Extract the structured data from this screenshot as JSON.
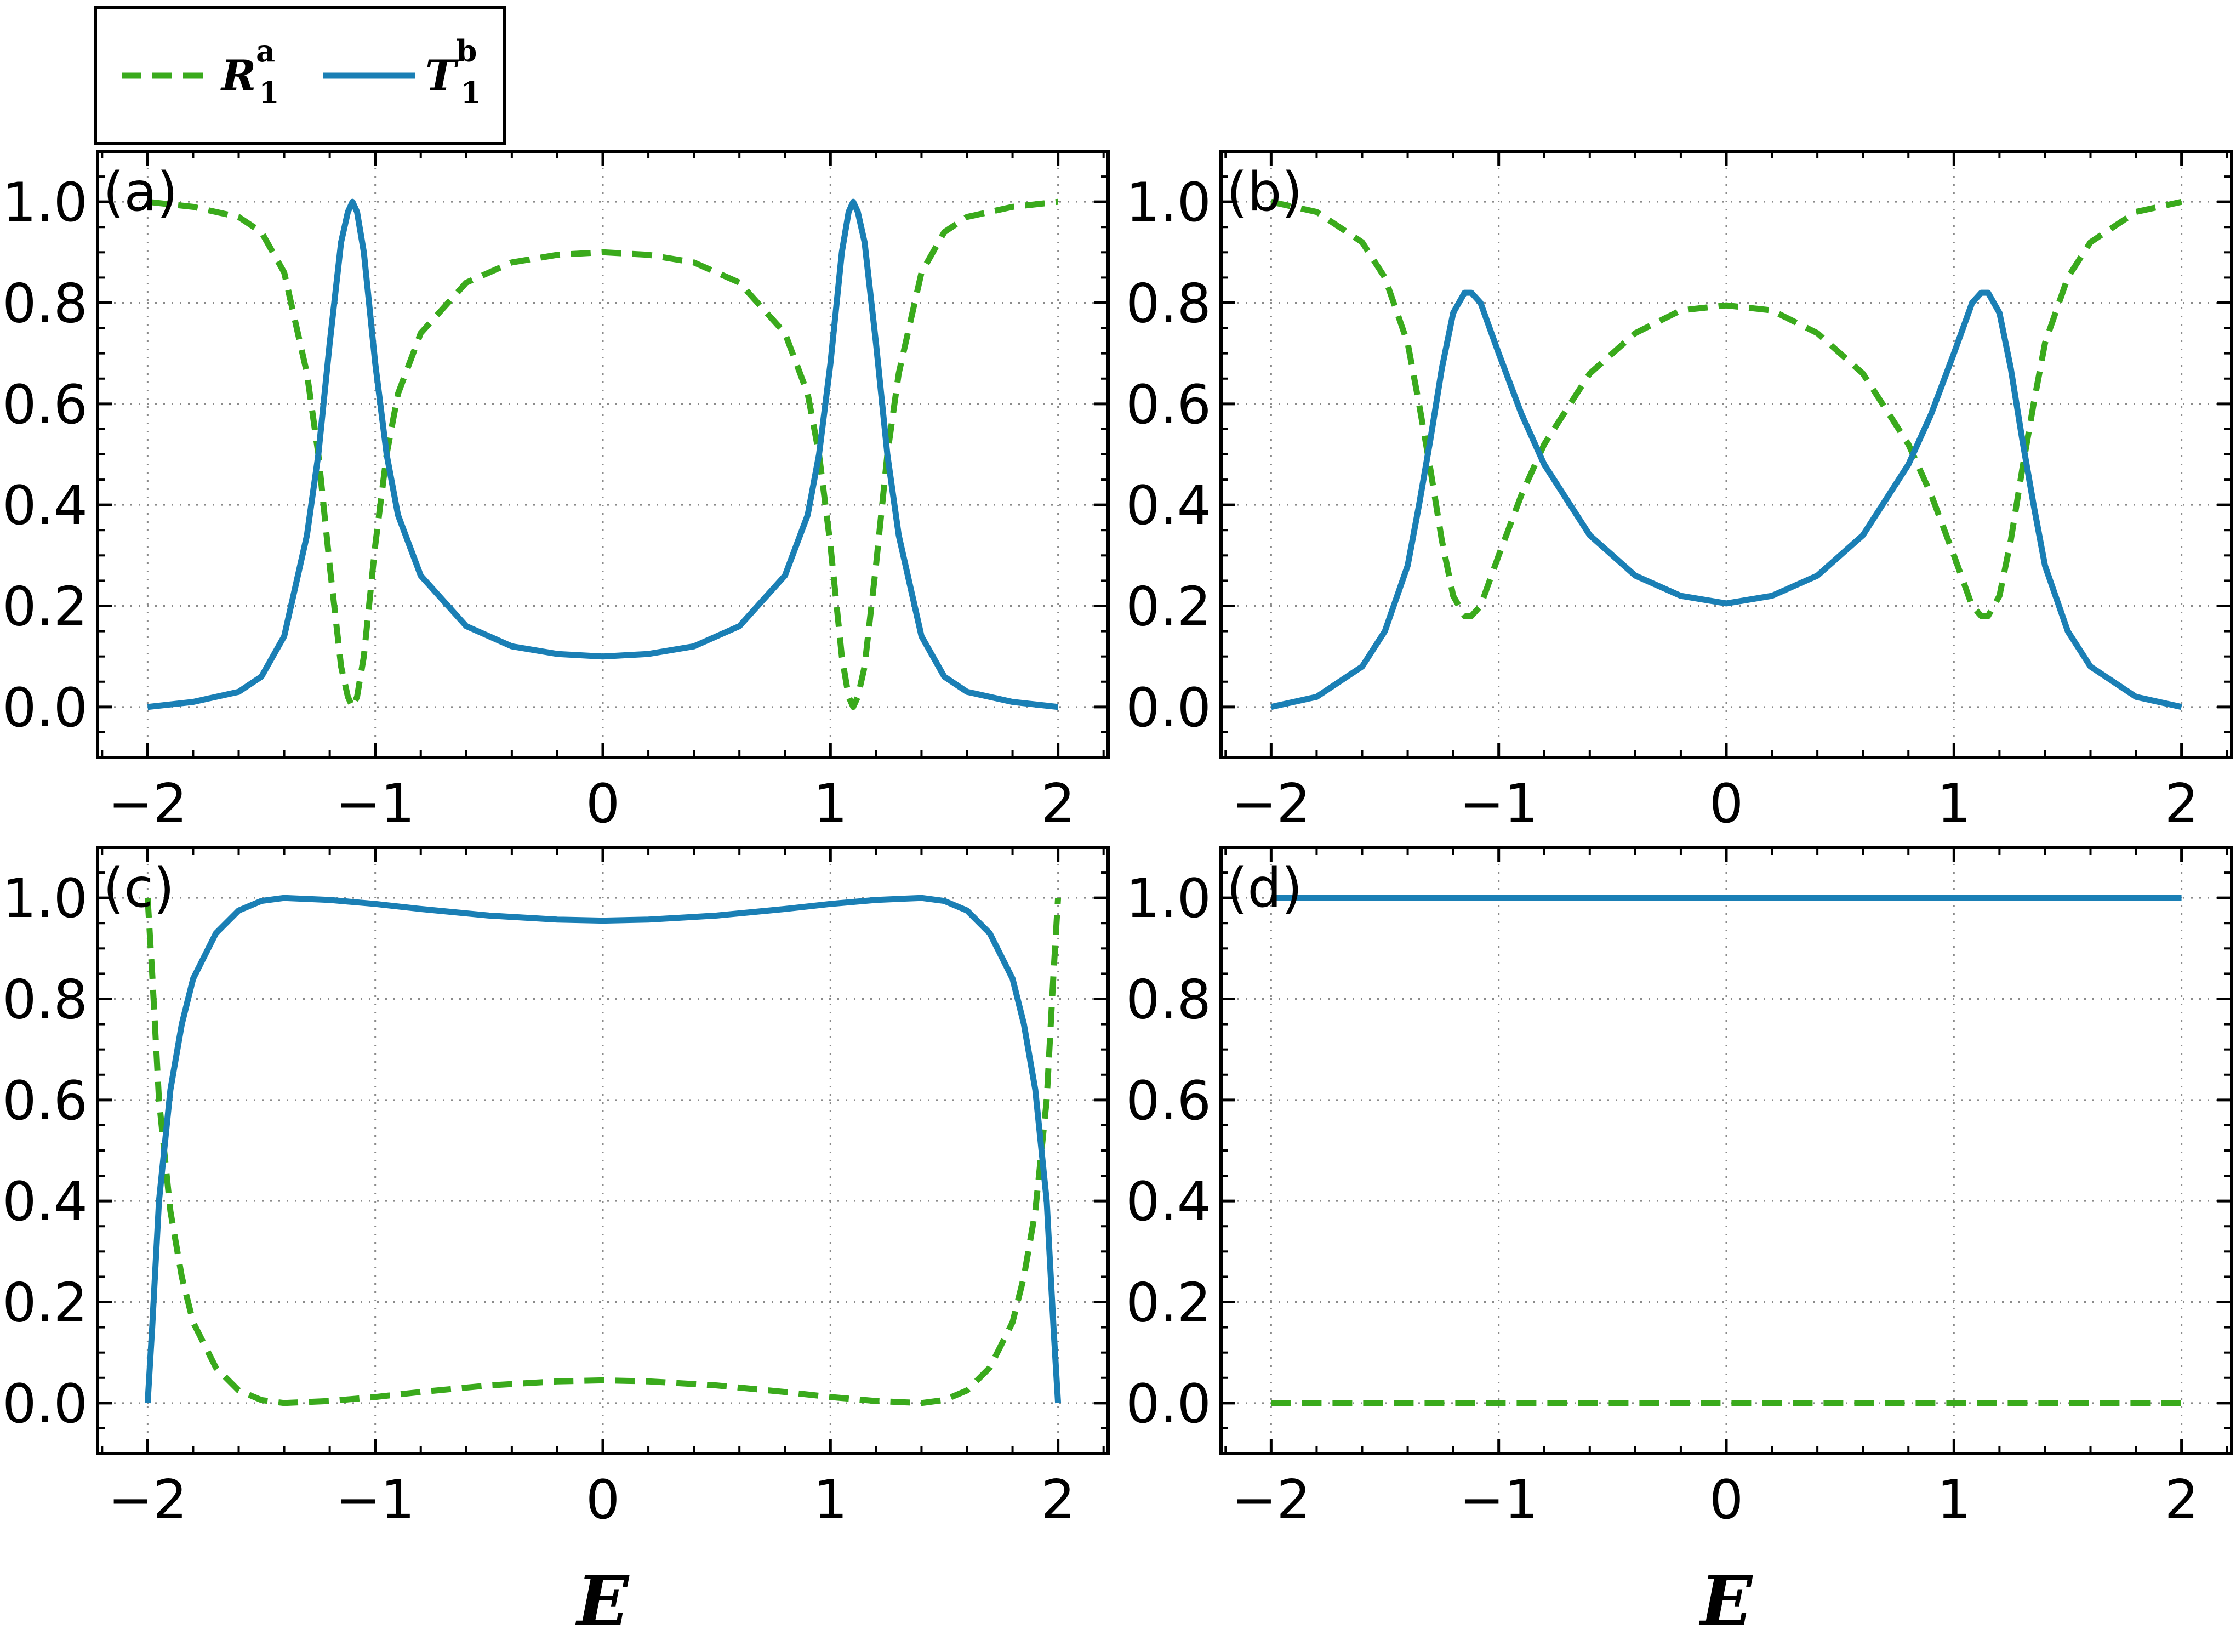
{
  "legend": {
    "entries": [
      {
        "symbol": "R",
        "sub": "1",
        "sup": "a",
        "color": "#3aaa1c",
        "dash": "dashed"
      },
      {
        "symbol": "T",
        "sub": "1",
        "sup": "b",
        "color": "#1a7fb5",
        "dash": "solid"
      }
    ]
  },
  "axes": {
    "xlabel": "E",
    "xlim": [
      -2.22,
      2.22
    ],
    "ylim": [
      -0.1,
      1.1
    ],
    "xticks": [
      -2,
      -1,
      0,
      1,
      2
    ],
    "xtick_labels": [
      "−2",
      "−1",
      "0",
      "1",
      "2"
    ],
    "yticks": [
      0.0,
      0.2,
      0.4,
      0.6,
      0.8,
      1.0
    ],
    "ytick_labels": [
      "0.0",
      "0.2",
      "0.4",
      "0.6",
      "0.8",
      "1.0"
    ],
    "grid": true
  },
  "chart_data": [
    {
      "type": "line",
      "panel": "(a)",
      "xlabel": "",
      "series": [
        {
          "name": "R1a",
          "color": "#3aaa1c",
          "style": "dashed",
          "x": [
            -2,
            -1.8,
            -1.6,
            -1.5,
            -1.4,
            -1.3,
            -1.25,
            -1.2,
            -1.15,
            -1.12,
            -1.1,
            -1.08,
            -1.05,
            -1.0,
            -0.95,
            -0.9,
            -0.8,
            -0.6,
            -0.4,
            -0.2,
            0,
            0.2,
            0.4,
            0.6,
            0.8,
            0.9,
            0.95,
            1.0,
            1.05,
            1.08,
            1.1,
            1.12,
            1.15,
            1.2,
            1.25,
            1.3,
            1.4,
            1.5,
            1.6,
            1.8,
            2
          ],
          "y": [
            1.0,
            0.99,
            0.97,
            0.94,
            0.86,
            0.66,
            0.5,
            0.28,
            0.08,
            0.02,
            0.0,
            0.02,
            0.1,
            0.32,
            0.5,
            0.62,
            0.74,
            0.84,
            0.88,
            0.895,
            0.9,
            0.895,
            0.88,
            0.84,
            0.74,
            0.62,
            0.5,
            0.32,
            0.1,
            0.02,
            0.0,
            0.02,
            0.08,
            0.28,
            0.5,
            0.66,
            0.86,
            0.94,
            0.97,
            0.99,
            1.0
          ]
        },
        {
          "name": "T1b",
          "color": "#1a7fb5",
          "style": "solid",
          "x": [
            -2,
            -1.8,
            -1.6,
            -1.5,
            -1.4,
            -1.3,
            -1.25,
            -1.2,
            -1.15,
            -1.12,
            -1.1,
            -1.08,
            -1.05,
            -1.0,
            -0.95,
            -0.9,
            -0.8,
            -0.6,
            -0.4,
            -0.2,
            0,
            0.2,
            0.4,
            0.6,
            0.8,
            0.9,
            0.95,
            1.0,
            1.05,
            1.08,
            1.1,
            1.12,
            1.15,
            1.2,
            1.25,
            1.3,
            1.4,
            1.5,
            1.6,
            1.8,
            2
          ],
          "y": [
            0.0,
            0.01,
            0.03,
            0.06,
            0.14,
            0.34,
            0.5,
            0.72,
            0.92,
            0.98,
            1.0,
            0.98,
            0.9,
            0.68,
            0.5,
            0.38,
            0.26,
            0.16,
            0.12,
            0.105,
            0.1,
            0.105,
            0.12,
            0.16,
            0.26,
            0.38,
            0.5,
            0.68,
            0.9,
            0.98,
            1.0,
            0.98,
            0.92,
            0.72,
            0.5,
            0.34,
            0.14,
            0.06,
            0.03,
            0.01,
            0.0
          ]
        }
      ]
    },
    {
      "type": "line",
      "panel": "(b)",
      "xlabel": "",
      "series": [
        {
          "name": "R1a",
          "color": "#3aaa1c",
          "style": "dashed",
          "x": [
            -2,
            -1.8,
            -1.6,
            -1.5,
            -1.4,
            -1.35,
            -1.3,
            -1.25,
            -1.2,
            -1.15,
            -1.12,
            -1.08,
            -1.0,
            -0.9,
            -0.8,
            -0.6,
            -0.4,
            -0.2,
            0,
            0.2,
            0.4,
            0.6,
            0.8,
            0.9,
            1.0,
            1.08,
            1.12,
            1.15,
            1.2,
            1.25,
            1.3,
            1.35,
            1.4,
            1.5,
            1.6,
            1.8,
            2
          ],
          "y": [
            1.0,
            0.98,
            0.92,
            0.85,
            0.72,
            0.6,
            0.47,
            0.33,
            0.22,
            0.18,
            0.18,
            0.2,
            0.3,
            0.42,
            0.52,
            0.66,
            0.74,
            0.785,
            0.795,
            0.785,
            0.74,
            0.66,
            0.52,
            0.42,
            0.3,
            0.2,
            0.18,
            0.18,
            0.22,
            0.33,
            0.47,
            0.6,
            0.72,
            0.85,
            0.92,
            0.98,
            1.0
          ]
        },
        {
          "name": "T1b",
          "color": "#1a7fb5",
          "style": "solid",
          "x": [
            -2,
            -1.8,
            -1.6,
            -1.5,
            -1.4,
            -1.35,
            -1.3,
            -1.25,
            -1.2,
            -1.15,
            -1.12,
            -1.08,
            -1.0,
            -0.9,
            -0.8,
            -0.6,
            -0.4,
            -0.2,
            0,
            0.2,
            0.4,
            0.6,
            0.8,
            0.9,
            1.0,
            1.08,
            1.12,
            1.15,
            1.2,
            1.25,
            1.3,
            1.35,
            1.4,
            1.5,
            1.6,
            1.8,
            2
          ],
          "y": [
            0.0,
            0.02,
            0.08,
            0.15,
            0.28,
            0.4,
            0.53,
            0.67,
            0.78,
            0.82,
            0.82,
            0.8,
            0.7,
            0.58,
            0.48,
            0.34,
            0.26,
            0.22,
            0.205,
            0.22,
            0.26,
            0.34,
            0.48,
            0.58,
            0.7,
            0.8,
            0.82,
            0.82,
            0.78,
            0.67,
            0.53,
            0.4,
            0.28,
            0.15,
            0.08,
            0.02,
            0.0
          ]
        }
      ]
    },
    {
      "type": "line",
      "panel": "(c)",
      "xlabel": "E",
      "series": [
        {
          "name": "R1a",
          "color": "#3aaa1c",
          "style": "dashed",
          "x": [
            -2,
            -1.98,
            -1.95,
            -1.9,
            -1.85,
            -1.8,
            -1.7,
            -1.6,
            -1.5,
            -1.4,
            -1.2,
            -1.0,
            -0.8,
            -0.5,
            -0.2,
            0,
            0.2,
            0.5,
            0.8,
            1.0,
            1.2,
            1.4,
            1.5,
            1.6,
            1.7,
            1.8,
            1.85,
            1.9,
            1.95,
            1.98,
            2
          ],
          "y": [
            1.0,
            0.85,
            0.6,
            0.38,
            0.25,
            0.16,
            0.07,
            0.025,
            0.006,
            0.0,
            0.004,
            0.012,
            0.022,
            0.035,
            0.043,
            0.045,
            0.043,
            0.035,
            0.022,
            0.012,
            0.004,
            0.0,
            0.006,
            0.025,
            0.07,
            0.16,
            0.25,
            0.38,
            0.6,
            0.85,
            1.0
          ]
        },
        {
          "name": "T1b",
          "color": "#1a7fb5",
          "style": "solid",
          "x": [
            -2,
            -1.98,
            -1.95,
            -1.9,
            -1.85,
            -1.8,
            -1.7,
            -1.6,
            -1.5,
            -1.4,
            -1.2,
            -1.0,
            -0.8,
            -0.5,
            -0.2,
            0,
            0.2,
            0.5,
            0.8,
            1.0,
            1.2,
            1.4,
            1.5,
            1.6,
            1.7,
            1.8,
            1.85,
            1.9,
            1.95,
            1.98,
            2
          ],
          "y": [
            0.0,
            0.15,
            0.4,
            0.62,
            0.75,
            0.84,
            0.93,
            0.975,
            0.994,
            1.0,
            0.996,
            0.988,
            0.978,
            0.965,
            0.957,
            0.955,
            0.957,
            0.965,
            0.978,
            0.988,
            0.996,
            1.0,
            0.994,
            0.975,
            0.93,
            0.84,
            0.75,
            0.62,
            0.4,
            0.15,
            0.0
          ]
        }
      ]
    },
    {
      "type": "line",
      "panel": "(d)",
      "xlabel": "E",
      "series": [
        {
          "name": "R1a",
          "color": "#3aaa1c",
          "style": "dashed",
          "x": [
            -2,
            2
          ],
          "y": [
            0.0,
            0.0
          ]
        },
        {
          "name": "T1b",
          "color": "#1a7fb5",
          "style": "solid",
          "x": [
            -2,
            2
          ],
          "y": [
            1.0,
            1.0
          ]
        }
      ]
    }
  ]
}
